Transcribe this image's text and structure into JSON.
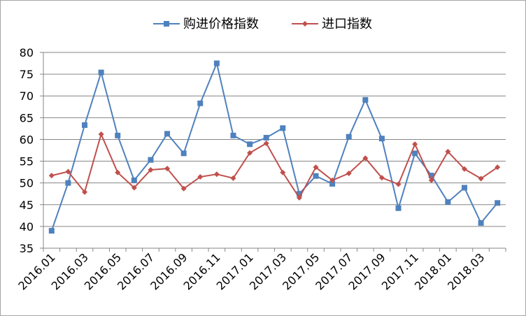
{
  "chart_data": {
    "type": "line",
    "title": "",
    "xlabel": "",
    "ylabel": "",
    "ylim": [
      35,
      80
    ],
    "yticks": [
      35,
      40,
      45,
      50,
      55,
      60,
      65,
      70,
      75,
      80
    ],
    "grid": "horizontal",
    "legend_position": "top",
    "x": [
      "2016.01",
      "2016.02",
      "2016.03",
      "2016.04",
      "2016.05",
      "2016.06",
      "2016.07",
      "2016.08",
      "2016.09",
      "2016.10",
      "2016.11",
      "2016.12",
      "2017.01",
      "2017.02",
      "2017.03",
      "2017.04",
      "2017.05",
      "2017.06",
      "2017.07",
      "2017.08",
      "2017.09",
      "2017.10",
      "2017.11",
      "2017.12",
      "2018.01",
      "2018.02",
      "2018.03",
      "2018.04"
    ],
    "x_tick_labels": [
      "2016.01",
      "2016.03",
      "2016.05",
      "2016.07",
      "2016.09",
      "2016.11",
      "2017.01",
      "2017.03",
      "2017.05",
      "2017.07",
      "2017.09",
      "2017.11",
      "2018.01",
      "2018.03"
    ],
    "series": [
      {
        "name": "购进价格指数",
        "color": "#4f81bd",
        "marker": "square",
        "values": [
          39.0,
          50.0,
          63.3,
          75.4,
          60.9,
          50.6,
          55.3,
          61.3,
          56.8,
          68.3,
          77.5,
          60.9,
          58.9,
          60.4,
          62.6,
          47.5,
          51.6,
          49.8,
          60.6,
          69.1,
          60.2,
          44.2,
          56.8,
          51.7,
          45.6,
          48.9,
          40.8,
          45.4
        ]
      },
      {
        "name": "进口指数",
        "color": "#c0504d",
        "marker": "diamond",
        "values": [
          51.7,
          52.6,
          47.9,
          61.2,
          52.4,
          48.9,
          53.0,
          53.3,
          48.7,
          51.4,
          52.0,
          51.1,
          56.9,
          59.1,
          52.4,
          46.6,
          53.6,
          50.6,
          52.2,
          55.7,
          51.2,
          49.7,
          58.9,
          50.6,
          57.2,
          53.2,
          51.0,
          53.6
        ]
      }
    ]
  }
}
